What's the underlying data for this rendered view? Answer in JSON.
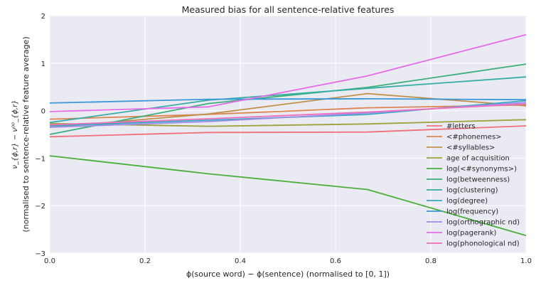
{
  "chart_data": {
    "type": "line",
    "title": "Measured bias for all sentence-relative features",
    "xlabel": "ϕ(source word) − ϕ(sentence) (normalised to [0, 1])",
    "ylabel_line1": "ν_{ϕ,r} − ν⁰⁰_{ϕ,r}",
    "ylabel_line2": "(normalised to sentence-relative feature average)",
    "xlim": [
      0,
      1
    ],
    "ylim": [
      -3,
      2
    ],
    "x_ticks": [
      "0.0",
      "0.2",
      "0.4",
      "0.6",
      "0.8",
      "1.0"
    ],
    "y_ticks": [
      "−3",
      "−2",
      "−1",
      "0",
      "1",
      "2"
    ],
    "grid": true,
    "legend_position": "lower-right",
    "x": [
      0.0,
      0.333,
      0.667,
      1.0
    ],
    "series": [
      {
        "name": "#letters",
        "color": "#f0707a",
        "values": [
          -0.55,
          -0.46,
          -0.45,
          -0.32
        ]
      },
      {
        "name": "<#phonemes>",
        "color": "#dd8452",
        "values": [
          -0.18,
          -0.08,
          0.06,
          0.12
        ]
      },
      {
        "name": "<#syllables>",
        "color": "#c0904a",
        "values": [
          -0.35,
          -0.07,
          0.36,
          0.1
        ]
      },
      {
        "name": "age of acquisition",
        "color": "#a0a03c",
        "values": [
          -0.27,
          -0.33,
          -0.28,
          -0.19
        ]
      },
      {
        "name": "log(<#synonyms>)",
        "color": "#4aaf3a",
        "values": [
          -0.95,
          -1.33,
          -1.66,
          -2.63
        ]
      },
      {
        "name": "log(betweenness)",
        "color": "#3aaf7a",
        "values": [
          -0.5,
          0.15,
          0.49,
          0.98
        ]
      },
      {
        "name": "log(clustering)",
        "color": "#36ada4",
        "values": [
          -0.25,
          0.22,
          0.47,
          0.71
        ]
      },
      {
        "name": "log(degree)",
        "color": "#3aa6c2",
        "values": [
          -0.32,
          -0.2,
          -0.08,
          0.21
        ]
      },
      {
        "name": "log(frequency)",
        "color": "#3a98da",
        "values": [
          0.16,
          0.24,
          0.25,
          0.23
        ]
      },
      {
        "name": "log(orthographic nd)",
        "color": "#9f8fe8",
        "values": [
          -0.35,
          -0.23,
          -0.05,
          0.17
        ]
      },
      {
        "name": "log(pagerank)",
        "color": "#e56ce8",
        "values": [
          -0.02,
          0.08,
          0.73,
          1.6
        ]
      },
      {
        "name": "log(phonological nd)",
        "color": "#ee6fbc",
        "values": [
          -0.3,
          -0.17,
          -0.03,
          0.14
        ]
      }
    ]
  }
}
